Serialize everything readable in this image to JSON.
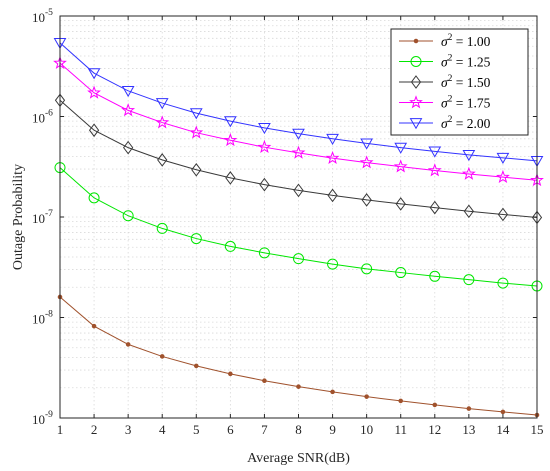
{
  "chart_data": {
    "type": "line",
    "xlabel": "Average SNR(dB)",
    "ylabel": "Outage Probability",
    "x": [
      1,
      2,
      3,
      4,
      5,
      6,
      7,
      8,
      9,
      10,
      11,
      12,
      13,
      14,
      15
    ],
    "xlim": [
      1,
      15
    ],
    "ylim": [
      1e-09,
      1e-05
    ],
    "yscale": "log",
    "x_tick_labels": [
      "1",
      "2",
      "3",
      "4",
      "5",
      "6",
      "7",
      "8",
      "9",
      "10",
      "11",
      "12",
      "13",
      "14",
      "15"
    ],
    "y_tick_labels": [
      {
        "base": "10",
        "exp": "-9"
      },
      {
        "base": "10",
        "exp": "-8"
      },
      {
        "base": "10",
        "exp": "-7"
      },
      {
        "base": "10",
        "exp": "-6"
      },
      {
        "base": "10",
        "exp": "-5"
      }
    ],
    "grid": true,
    "legend_position": "top-right",
    "series": [
      {
        "name": "σ² = 1.00",
        "legend_prefix": "σ",
        "legend_exp": "2",
        "legend_suffix": " = 1.00",
        "color": "#a0522d",
        "marker": "dot",
        "values": [
          1.6e-08,
          8.2e-09,
          5.4e-09,
          4.1e-09,
          3.3e-09,
          2.75e-09,
          2.35e-09,
          2.05e-09,
          1.82e-09,
          1.63e-09,
          1.48e-09,
          1.35e-09,
          1.24e-09,
          1.15e-09,
          1.07e-09
        ]
      },
      {
        "name": "σ² = 1.25",
        "legend_prefix": "σ",
        "legend_exp": "2",
        "legend_suffix": " = 1.25",
        "color": "#00e600",
        "marker": "circle",
        "values": [
          3.1e-07,
          1.55e-07,
          1.03e-07,
          7.7e-08,
          6.1e-08,
          5.1e-08,
          4.4e-08,
          3.85e-08,
          3.4e-08,
          3.05e-08,
          2.8e-08,
          2.57e-08,
          2.38e-08,
          2.2e-08,
          2.06e-08
        ]
      },
      {
        "name": "σ² = 1.50",
        "legend_prefix": "σ",
        "legend_exp": "2",
        "legend_suffix": " = 1.50",
        "color": "#3a3a3a",
        "marker": "diamond",
        "values": [
          1.45e-06,
          7.3e-07,
          4.9e-07,
          3.7e-07,
          2.95e-07,
          2.45e-07,
          2.1e-07,
          1.84e-07,
          1.64e-07,
          1.48e-07,
          1.35e-07,
          1.24e-07,
          1.14e-07,
          1.06e-07,
          9.9e-08
        ]
      },
      {
        "name": "σ² = 1.75",
        "legend_prefix": "σ",
        "legend_exp": "2",
        "legend_suffix": " = 1.75",
        "color": "#ff00ff",
        "marker": "star",
        "values": [
          3.4e-06,
          1.72e-06,
          1.15e-06,
          8.7e-07,
          6.9e-07,
          5.8e-07,
          4.95e-07,
          4.35e-07,
          3.85e-07,
          3.48e-07,
          3.17e-07,
          2.9e-07,
          2.68e-07,
          2.49e-07,
          2.32e-07
        ]
      },
      {
        "name": "σ² = 2.00",
        "legend_prefix": "σ",
        "legend_exp": "2",
        "legend_suffix": " = 2.00",
        "color": "#3333ff",
        "marker": "triangle-down",
        "values": [
          5.4e-06,
          2.7e-06,
          1.8e-06,
          1.36e-06,
          1.08e-06,
          9e-07,
          7.7e-07,
          6.75e-07,
          6e-07,
          5.4e-07,
          4.9e-07,
          4.5e-07,
          4.15e-07,
          3.88e-07,
          3.62e-07
        ]
      }
    ]
  }
}
